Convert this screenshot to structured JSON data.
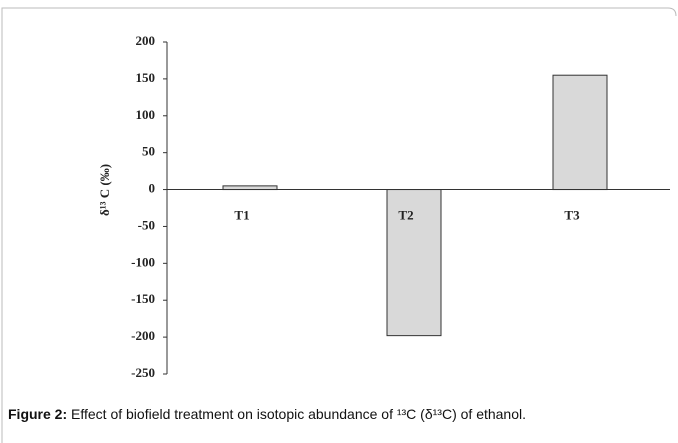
{
  "chart_data": {
    "type": "bar",
    "y_label": "δ¹³ C (‰)",
    "categories": [
      "T1",
      "T2",
      "T3"
    ],
    "values": [
      5,
      -198,
      155
    ],
    "color": "#d9d9d9",
    "ylim": [
      -250,
      200
    ],
    "yticks": [
      -250,
      -200,
      -150,
      -100,
      -50,
      0,
      50,
      100,
      150,
      200
    ]
  },
  "caption": {
    "label": "Figure 2:",
    "text": "Effect of biofield treatment on isotopic abundance of ¹³C (δ¹³C) of ethanol."
  }
}
